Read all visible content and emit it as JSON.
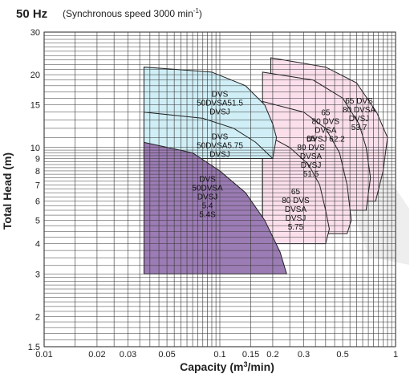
{
  "header": {
    "freq": "50 Hz",
    "speed_prefix": "(Synchronous speed  3000 min",
    "speed_sup": "-1",
    "speed_suffix": ")"
  },
  "chart_data": {
    "type": "area",
    "xscale": "log",
    "yscale": "log",
    "xlim": [
      0.01,
      1
    ],
    "ylim": [
      1.5,
      30
    ],
    "grid": true,
    "xlabel_main": "Capacity (m",
    "xlabel_sup": "3",
    "xlabel_rest": "/min)",
    "ylabel": "Total Head (m)",
    "x_ticks": [
      {
        "v": 0.01,
        "label": "0.01"
      },
      {
        "v": 0.02,
        "label": "0.02"
      },
      {
        "v": 0.03,
        "label": "0.03"
      },
      {
        "v": 0.05,
        "label": "0.05"
      },
      {
        "v": 0.1,
        "label": "0.1"
      },
      {
        "v": 0.15,
        "label": "0.15"
      },
      {
        "v": 0.2,
        "label": "0.2"
      },
      {
        "v": 0.3,
        "label": "0.3"
      },
      {
        "v": 0.5,
        "label": "0.5"
      },
      {
        "v": 1,
        "label": "1"
      }
    ],
    "y_ticks": [
      {
        "v": 1.5,
        "label": "1.5"
      },
      {
        "v": 2,
        "label": "2"
      },
      {
        "v": 3,
        "label": "3"
      },
      {
        "v": 4,
        "label": "4"
      },
      {
        "v": 5,
        "label": "5"
      },
      {
        "v": 6,
        "label": "6"
      },
      {
        "v": 7,
        "label": "7"
      },
      {
        "v": 8,
        "label": "8"
      },
      {
        "v": 9,
        "label": "9"
      },
      {
        "v": 10,
        "label": "10"
      },
      {
        "v": 15,
        "label": "15"
      },
      {
        "v": 20,
        "label": "20"
      },
      {
        "v": 30,
        "label": "30"
      }
    ],
    "regions": [
      {
        "fill": "#fbe0ec",
        "points": [
          [
            0.195,
            23.5
          ],
          [
            0.4,
            21.5
          ],
          [
            0.6,
            18.5
          ],
          [
            0.78,
            14
          ],
          [
            0.9,
            11
          ],
          [
            0.85,
            8
          ],
          [
            0.77,
            6
          ]
        ]
      },
      {
        "fill": "#fbe0ec",
        "points": [
          [
            0.175,
            20.5
          ],
          [
            0.34,
            19
          ],
          [
            0.5,
            16
          ],
          [
            0.62,
            12.5
          ],
          [
            0.68,
            10
          ],
          [
            0.72,
            7.5
          ],
          [
            0.68,
            5.5
          ]
        ]
      },
      {
        "fill": "#fbe0ec",
        "points": [
          [
            0.175,
            15.5
          ],
          [
            0.3,
            14
          ],
          [
            0.4,
            12
          ],
          [
            0.48,
            9.5
          ],
          [
            0.53,
            7
          ],
          [
            0.56,
            5
          ],
          [
            0.53,
            4.4
          ]
        ]
      },
      {
        "fill": "#fbe0ec",
        "points": [
          [
            0.175,
            11.5
          ],
          [
            0.25,
            10
          ],
          [
            0.32,
            8.5
          ],
          [
            0.37,
            7
          ],
          [
            0.4,
            5.5
          ],
          [
            0.42,
            4.6
          ],
          [
            0.4,
            4
          ]
        ]
      },
      {
        "fill": "#cfeef6",
        "points": [
          [
            0.037,
            21.5
          ],
          [
            0.09,
            20.5
          ],
          [
            0.14,
            18
          ],
          [
            0.18,
            15
          ],
          [
            0.2,
            12.5
          ],
          [
            0.21,
            11
          ],
          [
            0.2,
            9
          ]
        ]
      },
      {
        "fill": "#cfeef6",
        "points": [
          [
            0.037,
            14
          ],
          [
            0.08,
            13.2
          ],
          [
            0.12,
            12
          ],
          [
            0.16,
            10.5
          ],
          [
            0.185,
            9.5
          ],
          [
            0.2,
            9
          ]
        ]
      },
      {
        "fill": "#9c7cb4",
        "points": [
          [
            0.037,
            10.5
          ],
          [
            0.07,
            9.5
          ],
          [
            0.1,
            8
          ],
          [
            0.14,
            6.5
          ],
          [
            0.18,
            5
          ],
          [
            0.22,
            3.7
          ],
          [
            0.24,
            3
          ]
        ]
      }
    ],
    "series": [
      {
        "label_lines": [
          "65 DVS",
          "80 DVSA",
          "DVSJ",
          "53.7"
        ]
      },
      {
        "label_lines": [
          "65",
          "80 DVS",
          "DVSA",
          "DVSJ 62.2"
        ]
      },
      {
        "label_lines": [
          "65",
          "80 DVS",
          "DVSA",
          "DVSJ",
          "51.5"
        ]
      },
      {
        "label_lines": [
          "65",
          "80 DVS",
          "DVSA",
          "DVSJ",
          "5.75"
        ]
      },
      {
        "label_lines": [
          "DVS",
          "50DVSA51.5",
          "DVSJ"
        ]
      },
      {
        "label_lines": [
          "DVS",
          "50DVSA5.75",
          "DVSJ"
        ]
      },
      {
        "label_lines": [
          "DVS",
          "50DVSA",
          "DVSJ",
          "5.4",
          "5.4S"
        ]
      }
    ]
  }
}
